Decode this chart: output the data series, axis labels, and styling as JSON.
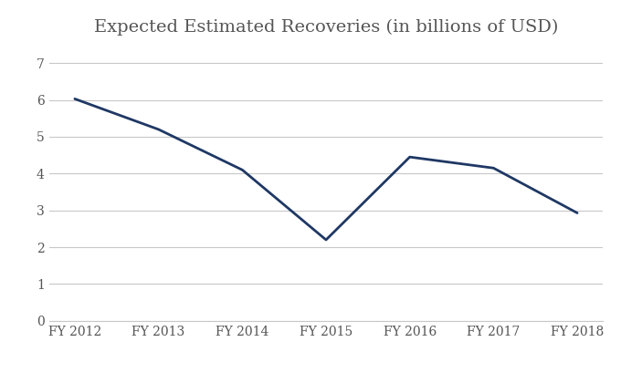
{
  "title": "Expected Estimated Recoveries (in billions of USD)",
  "categories": [
    "FY 2012",
    "FY 2013",
    "FY 2014",
    "FY 2015",
    "FY 2016",
    "FY 2017",
    "FY 2018"
  ],
  "values": [
    6.03,
    5.2,
    4.1,
    2.2,
    4.45,
    4.15,
    2.93
  ],
  "line_color": "#1F3864",
  "line_width": 2.0,
  "ylim": [
    0,
    7.5
  ],
  "yticks": [
    0,
    1,
    2,
    3,
    4,
    5,
    6,
    7
  ],
  "background_color": "#ffffff",
  "grid_color": "#c8c8c8",
  "title_fontsize": 14,
  "tick_fontsize": 10,
  "title_color": "#555555"
}
